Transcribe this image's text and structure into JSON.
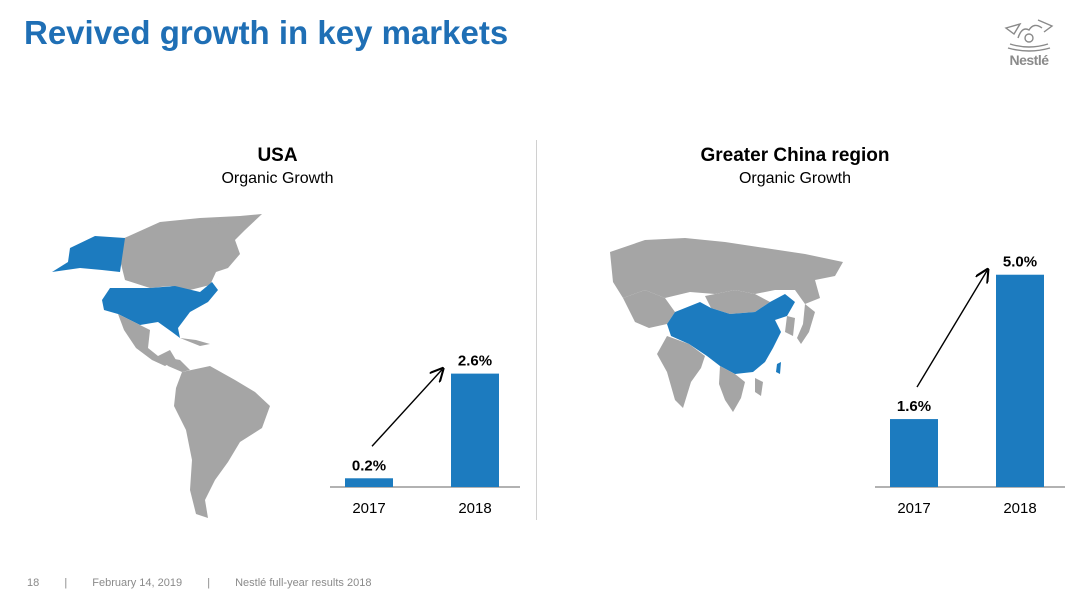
{
  "title": "Revived growth in key markets",
  "logo": {
    "wordmark": "Nestlé"
  },
  "colors": {
    "title": "#1f6fb5",
    "bar": "#1c7bbf",
    "map_land": "#a5a5a5",
    "map_highlight": "#1c7bbf"
  },
  "footer": {
    "page_number": "18",
    "separator": "|",
    "date": "February 14, 2019",
    "report": "Nestlé full-year results 2018"
  },
  "chart_data": [
    {
      "type": "bar",
      "title": "USA",
      "subtitle": "Organic Growth",
      "categories": [
        "2017",
        "2018"
      ],
      "values": [
        0.2,
        2.6
      ],
      "labels": [
        "0.2%",
        "2.6%"
      ],
      "ylim": [
        0,
        3.6
      ],
      "grid": false,
      "trend_arrow": true,
      "map_highlight": "USA",
      "map_icons": [
        "americas-map-icon"
      ]
    },
    {
      "type": "bar",
      "title": "Greater China region",
      "subtitle": "Organic Growth",
      "categories": [
        "2017",
        "2018"
      ],
      "values": [
        1.6,
        5.0
      ],
      "labels": [
        "1.6%",
        "5.0%"
      ],
      "ylim": [
        0,
        5.7
      ],
      "grid": false,
      "trend_arrow": true,
      "map_highlight": "Greater China",
      "map_icons": [
        "asia-map-icon"
      ]
    }
  ]
}
